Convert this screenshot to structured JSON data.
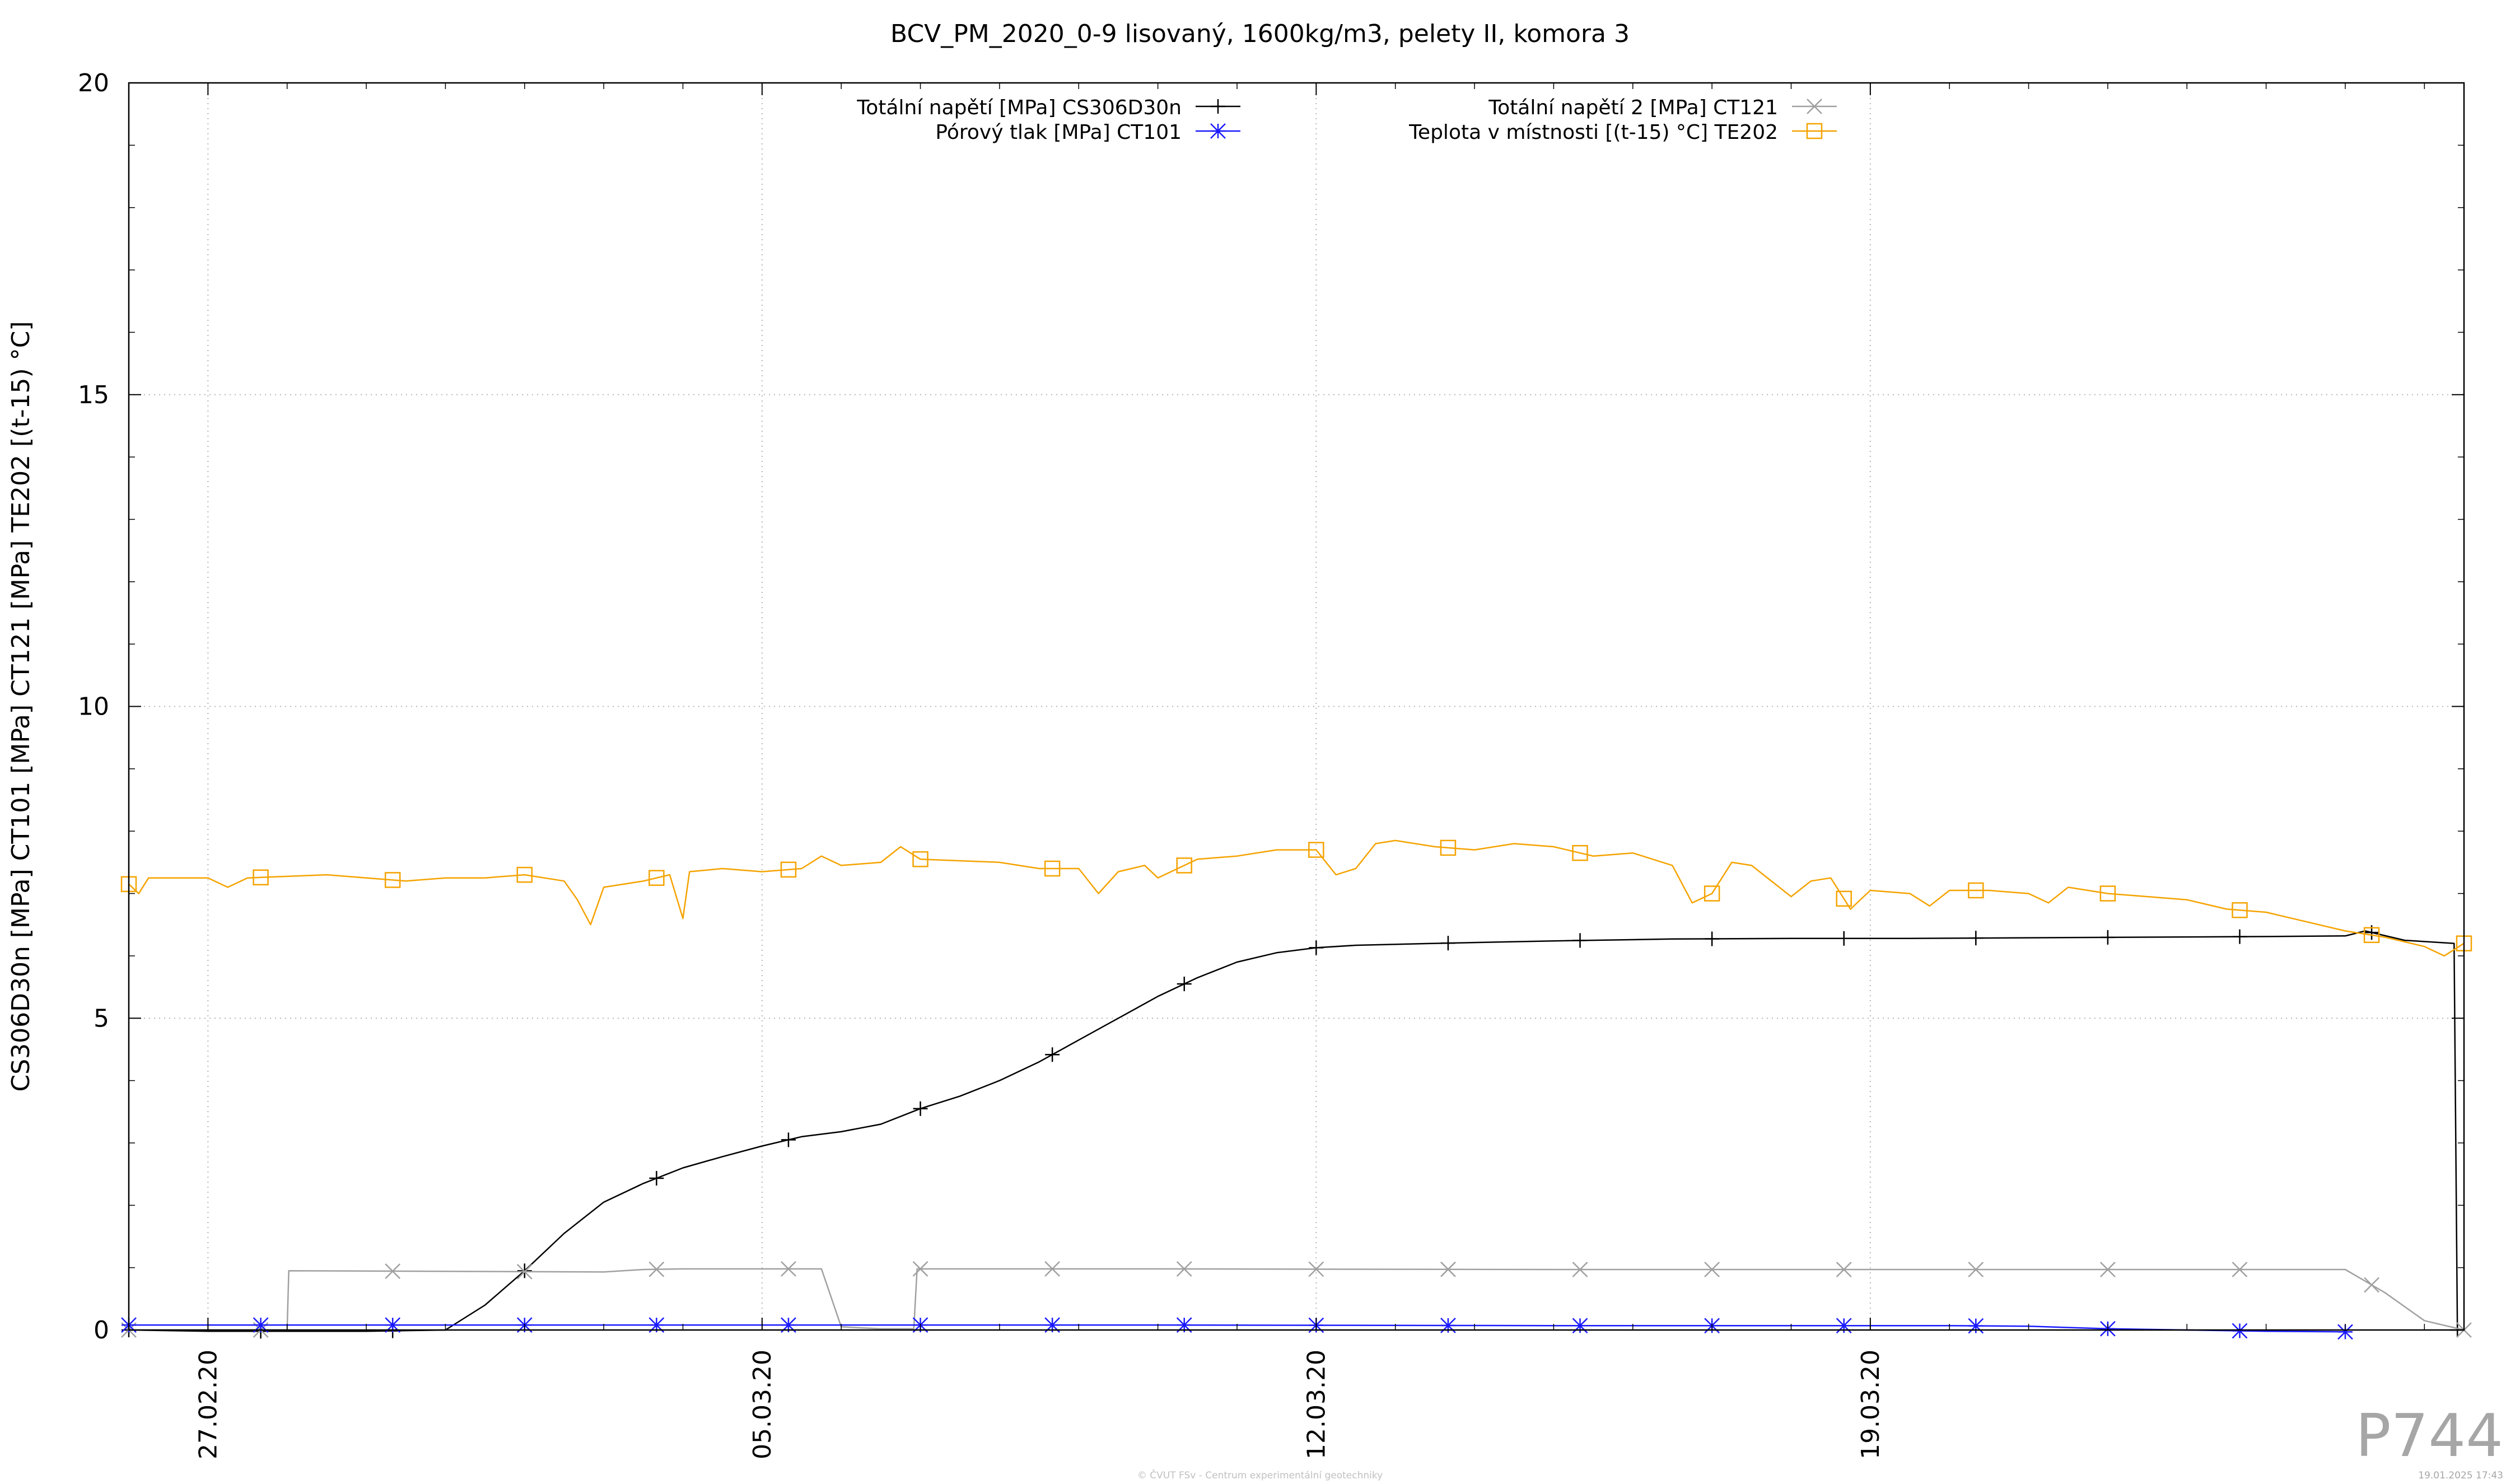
{
  "chart_data": {
    "type": "line",
    "title": "BCV_PM_2020_0-9 lisovaný, 1600kg/m3, pelety II, komora 3",
    "ylabel": "CS306D30n [MPa] CT101 [MPa] CT121 [MPa] TE202 [(t-15) °C]",
    "xlabel": "",
    "ylim": [
      0,
      20
    ],
    "xlim": [
      "2020-02-26T00:00",
      "2020-03-26T12:00"
    ],
    "yticks": [
      "0",
      "5",
      "10",
      "15",
      "20"
    ],
    "xticks": [
      {
        "date": "2020-02-27T00:00",
        "label": "27.02.20"
      },
      {
        "date": "2020-03-05T00:00",
        "label": "05.03.20"
      },
      {
        "date": "2020-03-12T00:00",
        "label": "12.03.20"
      },
      {
        "date": "2020-03-19T00:00",
        "label": "19.03.20"
      }
    ],
    "grid": true,
    "legend_position": "top",
    "series": [
      {
        "name": "Totální napětí [MPa] CS306D30n",
        "color": "#000000",
        "marker": "plus",
        "points": [
          [
            "2020-02-26T00:00",
            0.0
          ],
          [
            "2020-02-27T00:00",
            -0.02
          ],
          [
            "2020-02-28T00:00",
            -0.02
          ],
          [
            "2020-02-29T00:00",
            -0.02
          ],
          [
            "2020-03-01T00:00",
            0.0
          ],
          [
            "2020-03-01T12:00",
            0.4
          ],
          [
            "2020-03-02T00:00",
            0.95
          ],
          [
            "2020-03-02T12:00",
            1.55
          ],
          [
            "2020-03-03T00:00",
            2.05
          ],
          [
            "2020-03-03T12:00",
            2.35
          ],
          [
            "2020-03-04T00:00",
            2.6
          ],
          [
            "2020-03-04T12:00",
            2.78
          ],
          [
            "2020-03-05T00:00",
            2.95
          ],
          [
            "2020-03-05T12:00",
            3.1
          ],
          [
            "2020-03-06T00:00",
            3.18
          ],
          [
            "2020-03-06T12:00",
            3.3
          ],
          [
            "2020-03-07T00:00",
            3.55
          ],
          [
            "2020-03-07T12:00",
            3.75
          ],
          [
            "2020-03-08T00:00",
            4.0
          ],
          [
            "2020-03-08T12:00",
            4.3
          ],
          [
            "2020-03-09T00:00",
            4.65
          ],
          [
            "2020-03-09T12:00",
            5.0
          ],
          [
            "2020-03-10T00:00",
            5.35
          ],
          [
            "2020-03-10T12:00",
            5.65
          ],
          [
            "2020-03-11T00:00",
            5.9
          ],
          [
            "2020-03-11T12:00",
            6.05
          ],
          [
            "2020-03-12T00:00",
            6.13
          ],
          [
            "2020-03-12T12:00",
            6.17
          ],
          [
            "2020-03-13T12:00",
            6.2
          ],
          [
            "2020-03-15T00:00",
            6.24
          ],
          [
            "2020-03-16T12:00",
            6.27
          ],
          [
            "2020-03-18T00:00",
            6.28
          ],
          [
            "2020-03-19T12:00",
            6.28
          ],
          [
            "2020-03-21T00:00",
            6.29
          ],
          [
            "2020-03-22T12:00",
            6.3
          ],
          [
            "2020-03-24T00:00",
            6.31
          ],
          [
            "2020-03-25T00:00",
            6.32
          ],
          [
            "2020-03-25T06:00",
            6.4
          ],
          [
            "2020-03-25T18:00",
            6.25
          ],
          [
            "2020-03-26T09:00",
            6.2
          ],
          [
            "2020-03-26T10:00",
            0.0
          ]
        ]
      },
      {
        "name": "Totální napětí 2 [MPa] CT121",
        "color": "#a0a0a0",
        "marker": "x",
        "points": [
          [
            "2020-02-26T00:00",
            0.0
          ],
          [
            "2020-02-28T00:00",
            0.0
          ],
          [
            "2020-02-28T00:30",
            0.95
          ],
          [
            "2020-03-03T00:00",
            0.93
          ],
          [
            "2020-03-03T12:00",
            0.97
          ],
          [
            "2020-03-04T00:00",
            0.98
          ],
          [
            "2020-03-05T18:00",
            0.98
          ],
          [
            "2020-03-06T00:00",
            0.05
          ],
          [
            "2020-03-06T12:00",
            0.02
          ],
          [
            "2020-03-06T22:00",
            0.02
          ],
          [
            "2020-03-06T23:00",
            0.98
          ],
          [
            "2020-03-10T00:00",
            0.98
          ],
          [
            "2020-03-15T00:00",
            0.97
          ],
          [
            "2020-03-20T00:00",
            0.97
          ],
          [
            "2020-03-25T00:00",
            0.97
          ],
          [
            "2020-03-25T12:00",
            0.6
          ],
          [
            "2020-03-26T00:00",
            0.15
          ],
          [
            "2020-03-26T12:00",
            0.0
          ]
        ]
      },
      {
        "name": "Pórový tlak [MPa] CT101",
        "color": "#1a1aff",
        "marker": "star",
        "points": [
          [
            "2020-02-26T00:00",
            0.08
          ],
          [
            "2020-03-01T00:00",
            0.08
          ],
          [
            "2020-03-05T00:00",
            0.08
          ],
          [
            "2020-03-10T00:00",
            0.08
          ],
          [
            "2020-03-15T00:00",
            0.07
          ],
          [
            "2020-03-20T00:00",
            0.07
          ],
          [
            "2020-03-21T00:00",
            0.06
          ],
          [
            "2020-03-22T00:00",
            0.02
          ],
          [
            "2020-03-23T00:00",
            0.0
          ],
          [
            "2020-03-24T00:00",
            -0.02
          ],
          [
            "2020-03-25T00:00",
            -0.03
          ]
        ]
      },
      {
        "name": "Teplota v místnosti [(t-15) °C] TE202",
        "color": "#f5a300",
        "marker": "square",
        "points": [
          [
            "2020-02-26T00:00",
            7.15
          ],
          [
            "2020-02-26T03:00",
            7.0
          ],
          [
            "2020-02-26T06:00",
            7.25
          ],
          [
            "2020-02-27T00:00",
            7.25
          ],
          [
            "2020-02-27T06:00",
            7.1
          ],
          [
            "2020-02-27T12:00",
            7.25
          ],
          [
            "2020-02-28T12:00",
            7.3
          ],
          [
            "2020-02-29T00:00",
            7.25
          ],
          [
            "2020-02-29T12:00",
            7.2
          ],
          [
            "2020-03-01T00:00",
            7.25
          ],
          [
            "2020-03-01T12:00",
            7.25
          ],
          [
            "2020-03-02T00:00",
            7.3
          ],
          [
            "2020-03-02T12:00",
            7.2
          ],
          [
            "2020-03-02T16:00",
            6.9
          ],
          [
            "2020-03-02T20:00",
            6.5
          ],
          [
            "2020-03-03T00:00",
            7.1
          ],
          [
            "2020-03-03T12:00",
            7.2
          ],
          [
            "2020-03-03T20:00",
            7.3
          ],
          [
            "2020-03-04T00:00",
            6.6
          ],
          [
            "2020-03-04T02:00",
            7.35
          ],
          [
            "2020-03-04T12:00",
            7.4
          ],
          [
            "2020-03-05T00:00",
            7.35
          ],
          [
            "2020-03-05T12:00",
            7.4
          ],
          [
            "2020-03-05T18:00",
            7.6
          ],
          [
            "2020-03-06T00:00",
            7.45
          ],
          [
            "2020-03-06T12:00",
            7.5
          ],
          [
            "2020-03-06T18:00",
            7.75
          ],
          [
            "2020-03-07T00:00",
            7.55
          ],
          [
            "2020-03-08T00:00",
            7.5
          ],
          [
            "2020-03-08T12:00",
            7.4
          ],
          [
            "2020-03-09T00:00",
            7.4
          ],
          [
            "2020-03-09T06:00",
            7.0
          ],
          [
            "2020-03-09T12:00",
            7.35
          ],
          [
            "2020-03-09T20:00",
            7.45
          ],
          [
            "2020-03-10T00:00",
            7.25
          ],
          [
            "2020-03-10T12:00",
            7.55
          ],
          [
            "2020-03-11T00:00",
            7.6
          ],
          [
            "2020-03-11T12:00",
            7.7
          ],
          [
            "2020-03-12T00:00",
            7.7
          ],
          [
            "2020-03-12T06:00",
            7.3
          ],
          [
            "2020-03-12T12:00",
            7.4
          ],
          [
            "2020-03-12T18:00",
            7.8
          ],
          [
            "2020-03-13T00:00",
            7.85
          ],
          [
            "2020-03-13T12:00",
            7.75
          ],
          [
            "2020-03-14T00:00",
            7.7
          ],
          [
            "2020-03-14T12:00",
            7.8
          ],
          [
            "2020-03-15T00:00",
            7.75
          ],
          [
            "2020-03-15T12:00",
            7.6
          ],
          [
            "2020-03-16T00:00",
            7.65
          ],
          [
            "2020-03-16T12:00",
            7.45
          ],
          [
            "2020-03-16T18:00",
            6.85
          ],
          [
            "2020-03-17T00:00",
            7.0
          ],
          [
            "2020-03-17T06:00",
            7.5
          ],
          [
            "2020-03-17T12:00",
            7.45
          ],
          [
            "2020-03-18T00:00",
            6.95
          ],
          [
            "2020-03-18T06:00",
            7.2
          ],
          [
            "2020-03-18T12:00",
            7.25
          ],
          [
            "2020-03-18T18:00",
            6.75
          ],
          [
            "2020-03-19T00:00",
            7.05
          ],
          [
            "2020-03-19T12:00",
            7.0
          ],
          [
            "2020-03-19T18:00",
            6.8
          ],
          [
            "2020-03-20T00:00",
            7.05
          ],
          [
            "2020-03-20T12:00",
            7.05
          ],
          [
            "2020-03-21T00:00",
            7.0
          ],
          [
            "2020-03-21T06:00",
            6.85
          ],
          [
            "2020-03-21T12:00",
            7.1
          ],
          [
            "2020-03-22T00:00",
            7.0
          ],
          [
            "2020-03-22T12:00",
            6.95
          ],
          [
            "2020-03-23T00:00",
            6.9
          ],
          [
            "2020-03-23T12:00",
            6.75
          ],
          [
            "2020-03-24T00:00",
            6.7
          ],
          [
            "2020-03-24T12:00",
            6.55
          ],
          [
            "2020-03-25T00:00",
            6.4
          ],
          [
            "2020-03-25T12:00",
            6.3
          ],
          [
            "2020-03-26T00:00",
            6.15
          ],
          [
            "2020-03-26T06:00",
            6.0
          ],
          [
            "2020-03-26T12:00",
            6.2
          ]
        ]
      }
    ]
  },
  "watermark": "P744",
  "footer": {
    "credit": "© ČVUT FSv - Centrum experimentální geotechniky",
    "timestamp": "19.01.2025 17:43"
  }
}
